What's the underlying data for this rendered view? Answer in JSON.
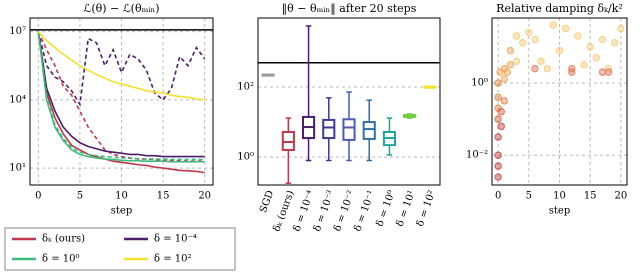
{
  "chart_data": [
    {
      "type": "line",
      "title": "ℒ(θ) − ℒ(θₘᵢₙ)",
      "xlabel": "step",
      "log_y": true,
      "grid": true,
      "legend": "bottom",
      "x": [
        0,
        1,
        2,
        3,
        4,
        5,
        6,
        7,
        8,
        9,
        10,
        11,
        12,
        13,
        14,
        15,
        16,
        17,
        18,
        19,
        20
      ],
      "xlim": [
        -1,
        21
      ],
      "xticks": [
        0,
        5,
        10,
        15,
        20
      ],
      "ylim": [
        1.8,
        40000000
      ],
      "yticks": [
        {
          "value": 10,
          "label": "10¹"
        },
        {
          "value": 10000,
          "label": "10⁴"
        },
        {
          "value": 10000000,
          "label": "10⁷"
        }
      ],
      "reference_lines": [
        {
          "value": 12000000,
          "color": "#000000"
        }
      ],
      "series": [
        {
          "name": "δₖ (ours)",
          "color": "#c0394b",
          "values": [
            10000000,
            20000,
            1600,
            320,
            100,
            63,
            40,
            32,
            25,
            20,
            18,
            16,
            14,
            13,
            11,
            10,
            8.9,
            7.9,
            7.6,
            7.1,
            6.3
          ],
          "dashed_values": [
            10000000,
            1600000,
            320000,
            40000,
            16000,
            3200,
            630,
            200,
            63,
            40,
            32,
            28,
            25,
            25,
            24,
            22,
            22,
            21,
            20,
            20,
            20
          ]
        },
        {
          "name": "δ = 10⁻⁴",
          "color": "#4b1d6b",
          "values": [
            10000000,
            32000,
            3200,
            630,
            250,
            130,
            89,
            71,
            56,
            50,
            45,
            40,
            40,
            35,
            35,
            32,
            32,
            32,
            32,
            32,
            32
          ],
          "dashed_values": [
            10000000,
            320000,
            100000,
            63000,
            25000,
            6300,
            5000000,
            3200000,
            320000,
            1600000,
            160000,
            1000000,
            630000,
            200000,
            20000,
            10000,
            32000,
            800000,
            320000,
            2000000,
            630000
          ]
        },
        {
          "name": "δ = 10⁰",
          "color": "#3dba7a",
          "values": [
            10000000,
            10000,
            630,
            160,
            63,
            40,
            32,
            28,
            25,
            24,
            22,
            21,
            21,
            20,
            20,
            20,
            19,
            19,
            19,
            19,
            19
          ],
          "dashed_values": [
            10000000,
            13000,
            790,
            200,
            79,
            50,
            40,
            35,
            32,
            30,
            28,
            27,
            26,
            25,
            25,
            25,
            24,
            24,
            24,
            24,
            24
          ]
        },
        {
          "name": "δ = 10²",
          "color": "#f5e02a",
          "values": [
            10000000,
            4000000,
            2000000,
            1000000,
            560000,
            320000,
            200000,
            130000,
            89000,
            63000,
            50000,
            40000,
            32000,
            25000,
            22000,
            20000,
            16000,
            14000,
            13000,
            11000,
            10000
          ]
        }
      ]
    },
    {
      "type": "box",
      "title": "‖θ − θₘᵢₙ‖ after 20 steps",
      "log_y": true,
      "grid": true,
      "ylim": [
        0.16,
        9300
      ],
      "yticks": [
        {
          "value": 1,
          "label": "10⁰"
        },
        {
          "value": 100,
          "label": "10²"
        }
      ],
      "reference_lines": [
        {
          "value": 490,
          "color": "#000000"
        }
      ],
      "categories": [
        "SGD",
        "δₖ (ours)",
        "δ = 10⁻⁴",
        "δ = 10⁻³",
        "δ = 10⁻²",
        "δ = 10⁻¹",
        "δ = 10⁰",
        "δ = 10¹",
        "δ = 10²"
      ],
      "colors": [
        "#999999",
        "#c0394b",
        "#4b1d6b",
        "#3b3b8f",
        "#4a5ab0",
        "#2f6fa8",
        "#1fa59a",
        "#6fcf3f",
        "#f5e02a"
      ],
      "boxes": [
        {
          "min": 210,
          "q1": 215,
          "median": 220,
          "q3": 225,
          "max": 230
        },
        {
          "min": 0.18,
          "q1": 1.6,
          "median": 2.7,
          "q3": 5.2,
          "max": 13
        },
        {
          "min": 0.8,
          "q1": 3.5,
          "median": 7.2,
          "q3": 14,
          "max": 5500
        },
        {
          "min": 0.8,
          "q1": 3.5,
          "median": 7,
          "q3": 11.5,
          "max": 49
        },
        {
          "min": 0.8,
          "q1": 3.1,
          "median": 7,
          "q3": 12,
          "max": 72
        },
        {
          "min": 0.8,
          "q1": 3.3,
          "median": 6.3,
          "q3": 10,
          "max": 42
        },
        {
          "min": 1.15,
          "q1": 2.2,
          "median": 3.5,
          "q3": 5.2,
          "max": 13
        },
        {
          "min": 13,
          "q1": 14,
          "median": 15,
          "q3": 16,
          "max": 17
        },
        {
          "min": 95,
          "q1": 98,
          "median": 100,
          "q3": 102,
          "max": 105
        }
      ]
    },
    {
      "type": "scatter",
      "title": "Relative damping δₖ/k²",
      "xlabel": "step",
      "log_y": true,
      "grid": true,
      "xlim": [
        -1,
        21
      ],
      "xticks": [
        0,
        5,
        10,
        15,
        20
      ],
      "ylim": [
        0.0015,
        63
      ],
      "yticks": [
        {
          "value": 0.01,
          "label": "10⁻²"
        },
        {
          "value": 1,
          "label": "10⁰"
        }
      ],
      "x": [
        0,
        0,
        0,
        0,
        0,
        0,
        0,
        0,
        0.3,
        0.5,
        0.5,
        1,
        1,
        1,
        1.5,
        2,
        2,
        3,
        3,
        4,
        5,
        6,
        7,
        8,
        9,
        10,
        11,
        12,
        13,
        14,
        15,
        16,
        17,
        18,
        19,
        20,
        6,
        12,
        17,
        18
      ],
      "values": [
        0.0025,
        0.005,
        0.01,
        0.032,
        0.1,
        0.2,
        0.4,
        1,
        2,
        0.063,
        0.16,
        0.32,
        1.3,
        2.5,
        2,
        3.2,
        7.9,
        20,
        4,
        13,
        25,
        16,
        4,
        2.5,
        40,
        7.9,
        32,
        2,
        20,
        3.2,
        10,
        5,
        16,
        2.5,
        13,
        32,
        2.5,
        2.5,
        2,
        2
      ],
      "colors": [
        "#c43c3c",
        "#c43c3c",
        "#c43c3c",
        "#c43c3c",
        "#d0603c",
        "#e0803c",
        "#e0803c",
        "#e0803c",
        "#f0a050",
        "#c43c3c",
        "#d0603c",
        "#e0803c",
        "#f0a050",
        "#f0a050",
        "#f0a050",
        "#f0a050",
        "#f0a050",
        "#f8c870",
        "#f8c870",
        "#f8c870",
        "#f8c870",
        "#f8c870",
        "#f8c870",
        "#f8c870",
        "#f8c870",
        "#f8c870",
        "#f8c870",
        "#e07050",
        "#f8c870",
        "#f8c870",
        "#f8c870",
        "#f8c870",
        "#f8c870",
        "#f8c870",
        "#f8c870",
        "#f8c870",
        "#e07050",
        "#e07050",
        "#e07050",
        "#e07050"
      ]
    }
  ]
}
